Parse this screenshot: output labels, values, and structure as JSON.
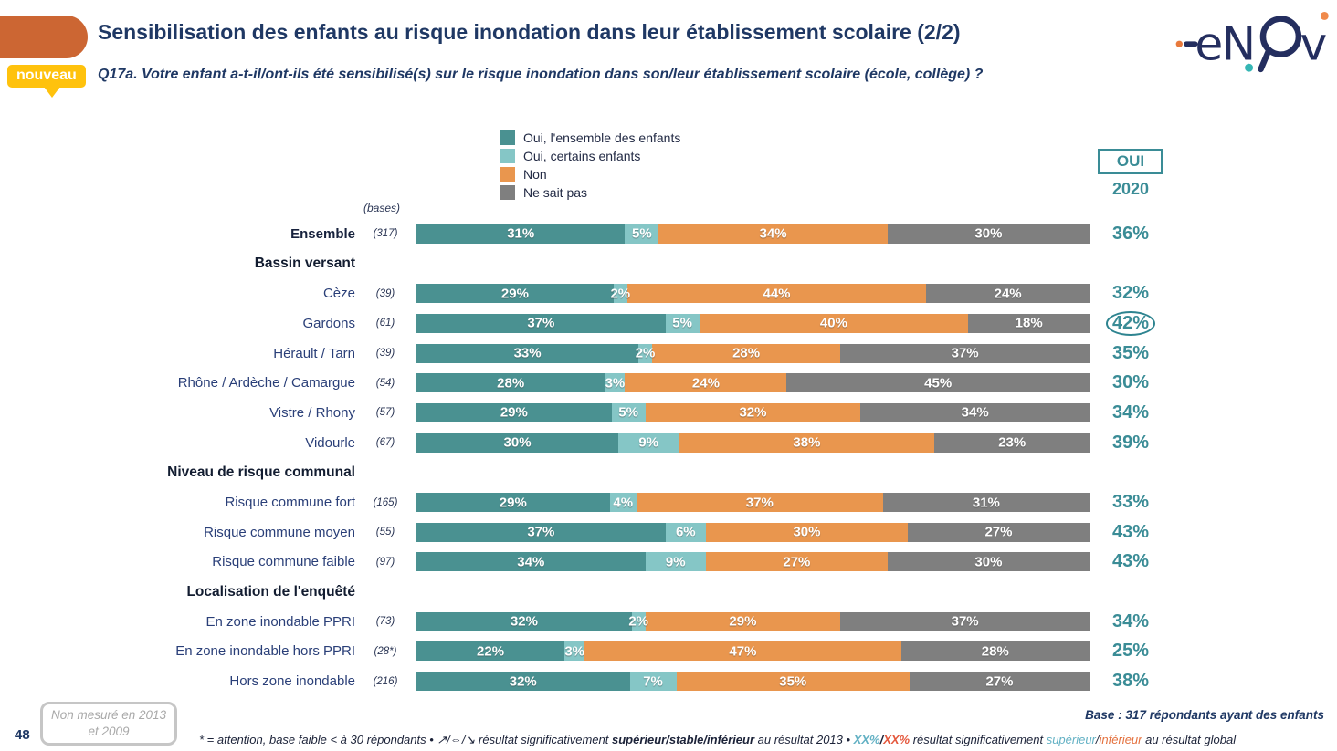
{
  "header": {
    "title": "Sensibilisation des enfants au risque inondation dans leur établissement scolaire (2/2)",
    "question": "Q17a. Votre enfant a-t-il/ont-ils été sensibilisé(s) sur le risque inondation dans son/leur établissement scolaire (école, collège) ?",
    "badge": "nouveau",
    "logo_name": "enov"
  },
  "colors": {
    "accent_teal": "#3a8c96",
    "dark_teal": "#4a9191",
    "light_teal": "#85c6c6",
    "orange": "#e9964e",
    "gray": "#7f7f7f",
    "header_orange": "#cc6633",
    "badge_yellow": "#ffc20d",
    "title_navy": "#1f3864"
  },
  "oui_header": {
    "box_label": "OUI",
    "year": "2020"
  },
  "bases_label": "(bases)",
  "chart_data": {
    "type": "bar",
    "stacked": true,
    "orientation": "horizontal",
    "unit": "%",
    "xlim": [
      0,
      100
    ],
    "legend_position": "top",
    "series_names": [
      "Oui, l'ensemble des enfants",
      "Oui, certains enfants",
      "Non",
      "Ne sait pas"
    ],
    "series_colors": [
      "#4a9191",
      "#85c6c6",
      "#e9964e",
      "#7f7f7f"
    ],
    "oui_column_title": "OUI 2020",
    "rows": [
      {
        "type": "bar",
        "label": "Ensemble",
        "base": "(317)",
        "values": [
          31,
          5,
          34,
          30
        ],
        "oui": "36%",
        "bold": true,
        "circled": false
      },
      {
        "type": "section",
        "label": "Bassin versant"
      },
      {
        "type": "bar",
        "label": "Cèze",
        "base": "(39)",
        "values": [
          29,
          2,
          44,
          24
        ],
        "oui": "32%",
        "bold": false,
        "circled": false
      },
      {
        "type": "bar",
        "label": "Gardons",
        "base": "(61)",
        "values": [
          37,
          5,
          40,
          18
        ],
        "oui": "42%",
        "bold": false,
        "circled": true
      },
      {
        "type": "bar",
        "label": "Hérault / Tarn",
        "base": "(39)",
        "values": [
          33,
          2,
          28,
          37
        ],
        "oui": "35%",
        "bold": false,
        "circled": false
      },
      {
        "type": "bar",
        "label": "Rhône / Ardèche / Camargue",
        "base": "(54)",
        "values": [
          28,
          3,
          24,
          45
        ],
        "oui": "30%",
        "bold": false,
        "circled": false
      },
      {
        "type": "bar",
        "label": "Vistre / Rhony",
        "base": "(57)",
        "values": [
          29,
          5,
          32,
          34
        ],
        "oui": "34%",
        "bold": false,
        "circled": false
      },
      {
        "type": "bar",
        "label": "Vidourle",
        "base": "(67)",
        "values": [
          30,
          9,
          38,
          23
        ],
        "oui": "39%",
        "bold": false,
        "circled": false
      },
      {
        "type": "section",
        "label": "Niveau de risque communal"
      },
      {
        "type": "bar",
        "label": "Risque commune fort",
        "base": "(165)",
        "values": [
          29,
          4,
          37,
          31
        ],
        "oui": "33%",
        "bold": false,
        "circled": false
      },
      {
        "type": "bar",
        "label": "Risque commune moyen",
        "base": "(55)",
        "values": [
          37,
          6,
          30,
          27
        ],
        "oui": "43%",
        "bold": false,
        "circled": false
      },
      {
        "type": "bar",
        "label": "Risque commune faible",
        "base": "(97)",
        "values": [
          34,
          9,
          27,
          30
        ],
        "oui": "43%",
        "bold": false,
        "circled": false
      },
      {
        "type": "section",
        "label": "Localisation de l'enquêté"
      },
      {
        "type": "bar",
        "label": "En zone inondable PPRI",
        "base": "(73)",
        "values": [
          32,
          2,
          29,
          37
        ],
        "oui": "34%",
        "bold": false,
        "circled": false
      },
      {
        "type": "bar",
        "label": "En zone inondable hors PPRI",
        "base": "(28*)",
        "values": [
          22,
          3,
          47,
          28
        ],
        "oui": "25%",
        "bold": false,
        "circled": false
      },
      {
        "type": "bar",
        "label": "Hors zone inondable",
        "base": "(216)",
        "values": [
          32,
          7,
          35,
          27
        ],
        "oui": "38%",
        "bold": false,
        "circled": false
      }
    ]
  },
  "footer": {
    "page_number": "48",
    "not_measured": "Non mesuré en 2013 et 2009",
    "base_note": "Base : 317 répondants ayant des enfants",
    "footnote_parts": [
      {
        "text": "* = attention, base faible < à 30 répondants • ↗/⇔/↘ résultat significativement ",
        "style": "plain"
      },
      {
        "text": "supérieur/stable/inférieur",
        "style": "bold"
      },
      {
        "text": " au résultat 2013 • ",
        "style": "plain"
      },
      {
        "text": "XX%",
        "style": "tealbold"
      },
      {
        "text": "/",
        "style": "bold"
      },
      {
        "text": "XX%",
        "style": "orangebold"
      },
      {
        "text": " résultat significativement ",
        "style": "plain"
      },
      {
        "text": "supérieur",
        "style": "teal"
      },
      {
        "text": "/",
        "style": "plain"
      },
      {
        "text": "inférieur",
        "style": "orange"
      },
      {
        "text": " au résultat global",
        "style": "plain"
      }
    ]
  }
}
